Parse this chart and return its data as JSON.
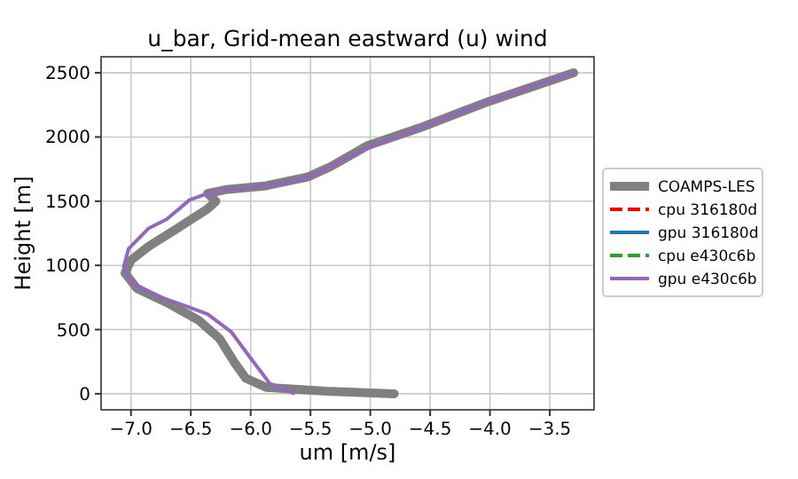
{
  "chart_data": {
    "type": "line",
    "title": "u_bar, Grid-mean eastward (u) wind",
    "xlabel": "um [m/s]",
    "ylabel": "Height [m]",
    "xlim": [
      -7.25,
      -3.13
    ],
    "ylim": [
      -125,
      2625
    ],
    "xticks": [
      {
        "value": -7,
        "label": "−7.0"
      },
      {
        "value": -6.5,
        "label": "−6.5"
      },
      {
        "value": -6,
        "label": "−6.0"
      },
      {
        "value": -5.5,
        "label": "−5.5"
      },
      {
        "value": -5,
        "label": "−5.0"
      },
      {
        "value": -4.5,
        "label": "−4.5"
      },
      {
        "value": -4,
        "label": "−4.0"
      },
      {
        "value": -3.5,
        "label": "−3.5"
      }
    ],
    "yticks": [
      0,
      500,
      1000,
      1500,
      2000,
      2500
    ],
    "grid": true,
    "legend": "right",
    "series": [
      {
        "name": "COAMPS-LES",
        "color": "#808080",
        "line_style": "solid",
        "x": [
          -4.8,
          -5.37,
          -5.87,
          -6.04,
          -6.14,
          -6.26,
          -6.43,
          -6.7,
          -6.95,
          -7.05,
          -7.0,
          -6.85,
          -6.61,
          -6.36,
          -6.29,
          -6.36,
          -6.21,
          -5.87,
          -5.52,
          -5.33,
          -5.03,
          -4.59,
          -4.0,
          -3.3
        ],
        "values": [
          0,
          20,
          50,
          120,
          250,
          430,
          570,
          710,
          820,
          940,
          1040,
          1150,
          1290,
          1440,
          1500,
          1560,
          1590,
          1620,
          1690,
          1770,
          1930,
          2070,
          2280,
          2500
        ]
      },
      {
        "name": "cpu 316180d",
        "color": "#ff0000",
        "line_style": "dashed"
      },
      {
        "name": "gpu 316180d",
        "color": "#1f77b4",
        "line_style": "solid"
      },
      {
        "name": "cpu e430c6b",
        "color": "#2ca02c",
        "line_style": "dashed"
      },
      {
        "name": "gpu e430c6b",
        "color": "#9467bd",
        "line_style": "solid",
        "x": [
          -5.63,
          -5.84,
          -6.01,
          -6.16,
          -6.36,
          -6.56,
          -6.78,
          -7.0,
          -7.06,
          -7.02,
          -6.85,
          -6.7,
          -6.51,
          -6.36,
          -6.06,
          -5.72,
          -5.47,
          -5.28,
          -4.98,
          -4.59,
          -4.0,
          -3.3
        ],
        "values": [
          0,
          80,
          290,
          480,
          620,
          690,
          760,
          870,
          990,
          1130,
          1290,
          1360,
          1510,
          1560,
          1600,
          1640,
          1700,
          1800,
          1930,
          2070,
          2280,
          2500
        ]
      }
    ]
  }
}
